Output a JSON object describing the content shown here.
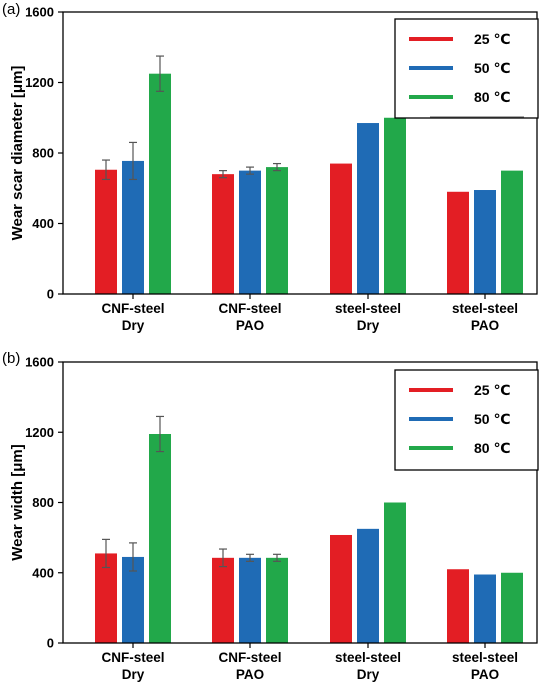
{
  "chart_data": [
    {
      "type": "bar",
      "panel_label": "(a)",
      "ylabel": "Wear scar diameter  [μm]",
      "ylim": [
        0,
        1600
      ],
      "yticks": [
        "0",
        "400",
        "800",
        "1200",
        "1600"
      ],
      "categories": [
        [
          "CNF-steel",
          "Dry"
        ],
        [
          "CNF-steel",
          "PAO"
        ],
        [
          "steel-steel",
          "Dry"
        ],
        [
          "steel-steel",
          "PAO"
        ]
      ],
      "series": [
        {
          "name": "25 ℃",
          "color": "#e31e24",
          "values": [
            705,
            680,
            740,
            580
          ],
          "errors": [
            55,
            20,
            null,
            null
          ]
        },
        {
          "name": "50 ℃",
          "color": "#1f6bb5",
          "values": [
            755,
            700,
            970,
            590
          ],
          "errors": [
            105,
            20,
            null,
            null
          ]
        },
        {
          "name": "80 ℃",
          "color": "#22a84a",
          "values": [
            1250,
            720,
            1000,
            700
          ],
          "errors": [
            100,
            20,
            null,
            null
          ]
        }
      ],
      "legend": "top-right"
    },
    {
      "type": "bar",
      "panel_label": "(b)",
      "ylabel": "Wear width [μm]",
      "ylim": [
        0,
        1600
      ],
      "yticks": [
        "0",
        "400",
        "800",
        "1200",
        "1600"
      ],
      "categories": [
        [
          "CNF-steel",
          "Dry"
        ],
        [
          "CNF-steel",
          "PAO"
        ],
        [
          "steel-steel",
          "Dry"
        ],
        [
          "steel-steel",
          "PAO"
        ]
      ],
      "series": [
        {
          "name": "25 ℃",
          "color": "#e31e24",
          "values": [
            510,
            485,
            615,
            420
          ],
          "errors": [
            80,
            50,
            null,
            null
          ]
        },
        {
          "name": "50 ℃",
          "color": "#1f6bb5",
          "values": [
            490,
            485,
            650,
            390
          ],
          "errors": [
            80,
            20,
            null,
            null
          ]
        },
        {
          "name": "80 ℃",
          "color": "#22a84a",
          "values": [
            1190,
            485,
            800,
            400
          ],
          "errors": [
            100,
            20,
            null,
            null
          ]
        }
      ],
      "legend": "top-right"
    }
  ]
}
